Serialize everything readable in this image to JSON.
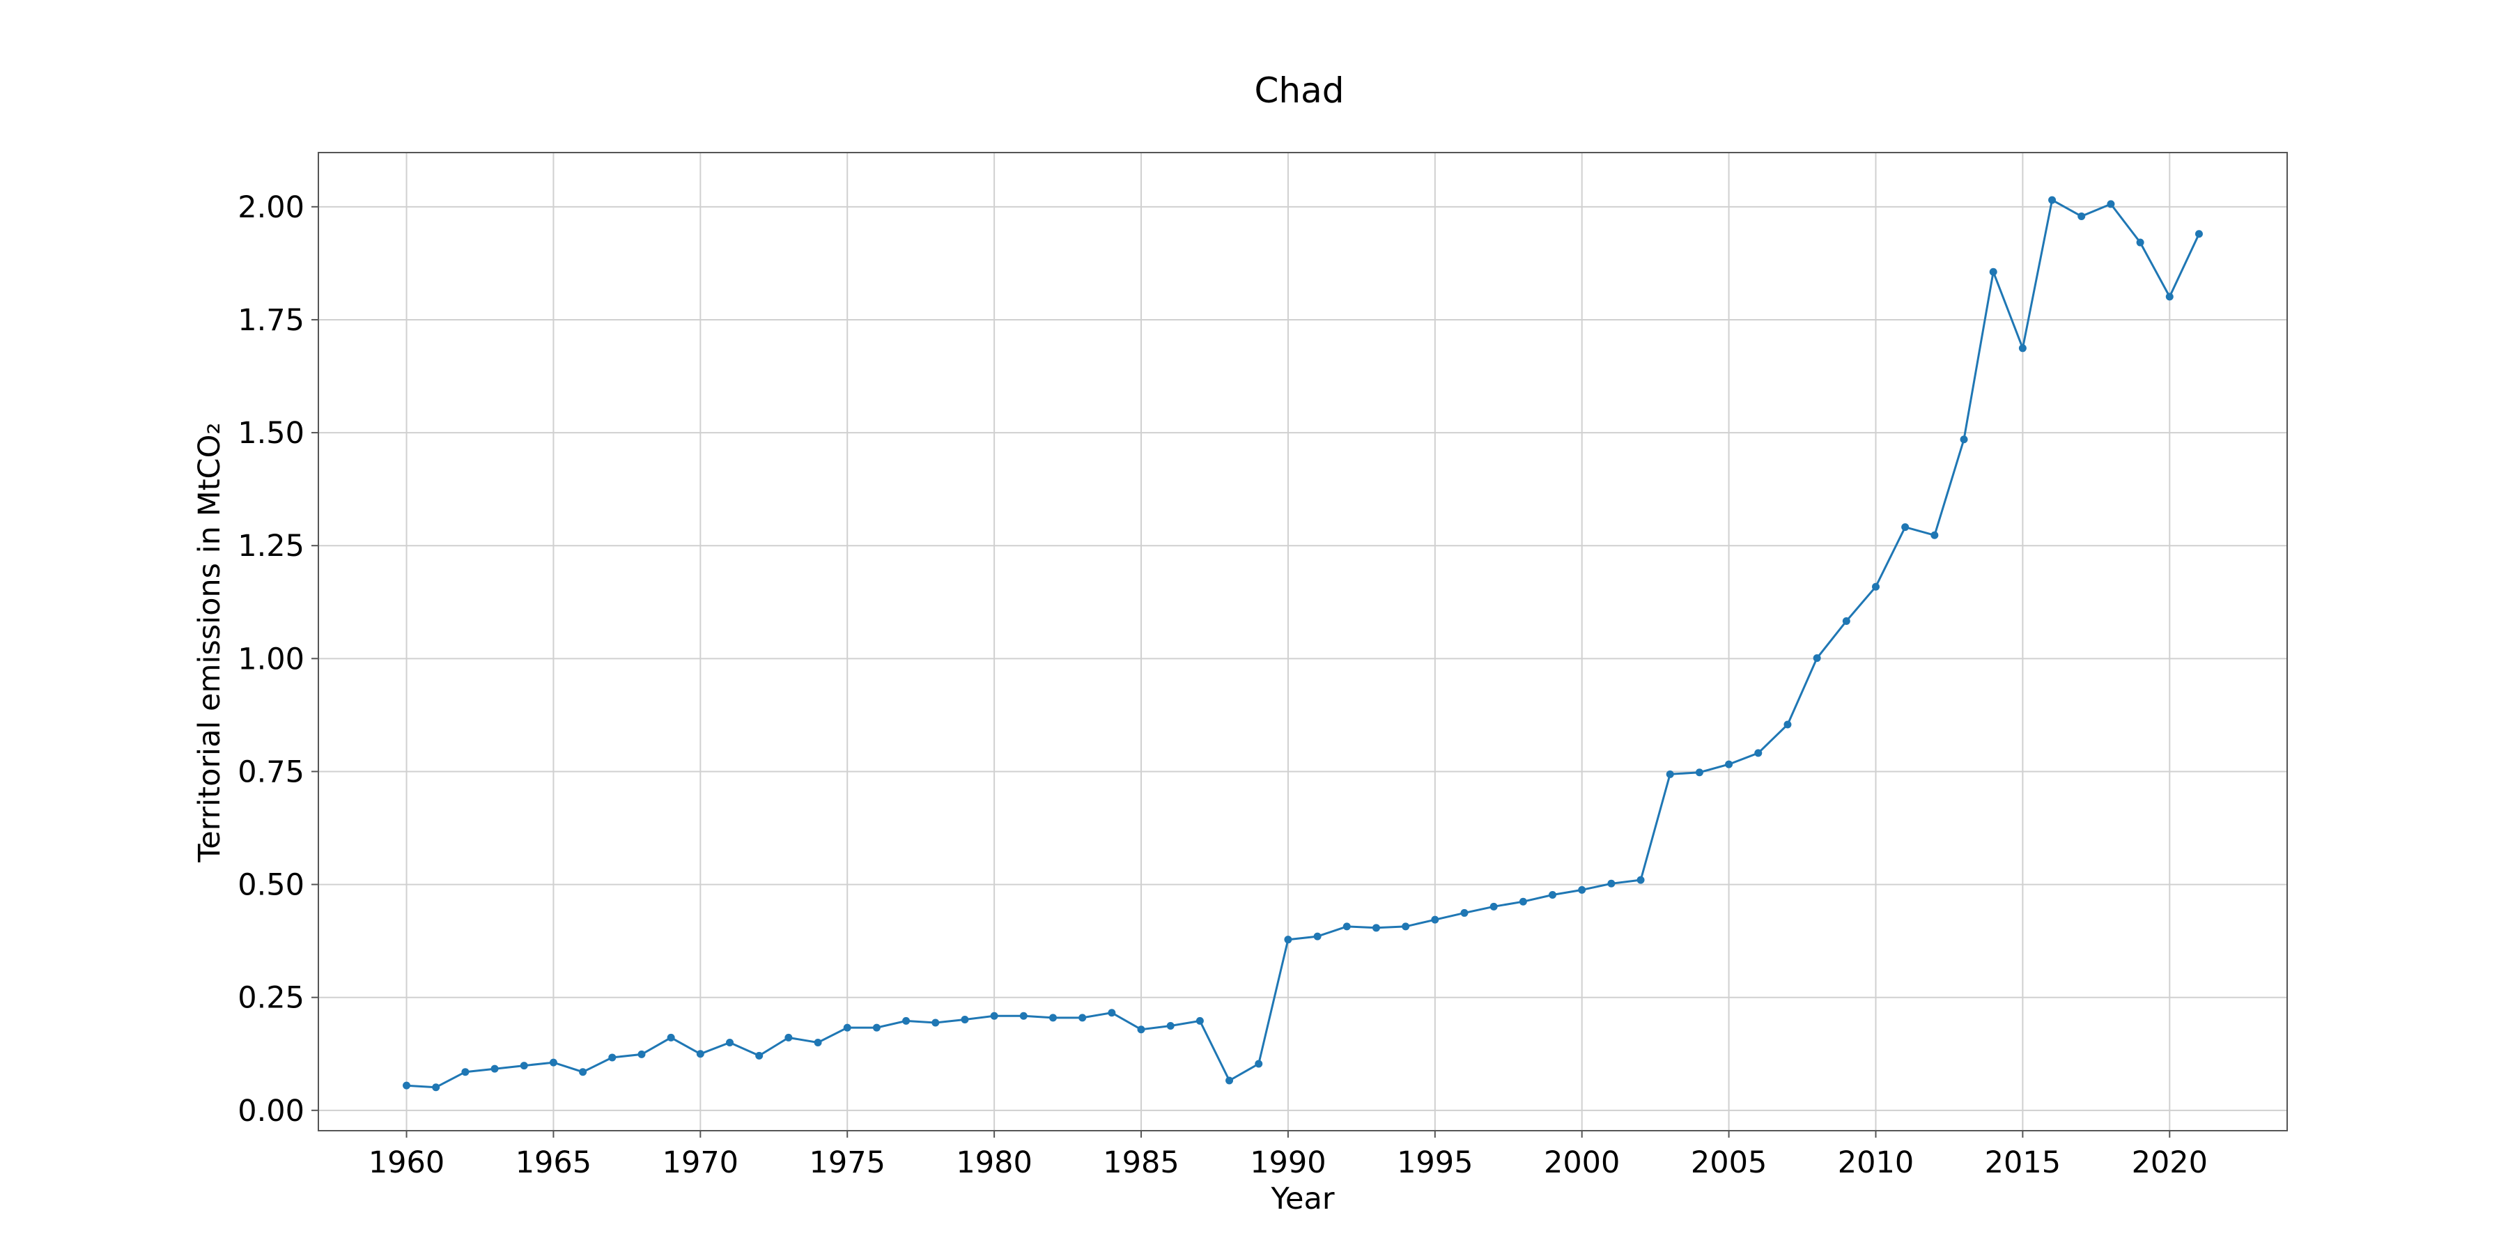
{
  "chart_data": {
    "type": "line",
    "title": "Chad",
    "xlabel": "Year",
    "ylabel": "Territorial emissions in MtCO₂",
    "xlim": [
      1957,
      2024
    ],
    "ylim": [
      -0.045,
      2.12
    ],
    "grid": true,
    "x_ticks": [
      1960,
      1965,
      1970,
      1975,
      1980,
      1985,
      1990,
      1995,
      2000,
      2005,
      2010,
      2015,
      2020
    ],
    "x_tick_labels": [
      "1960",
      "1965",
      "1970",
      "1975",
      "1980",
      "1985",
      "1990",
      "1995",
      "2000",
      "2005",
      "2010",
      "2015",
      "2020"
    ],
    "y_ticks": [
      0.0,
      0.25,
      0.5,
      0.75,
      1.0,
      1.25,
      1.5,
      1.75,
      2.0
    ],
    "y_tick_labels": [
      "0.00",
      "0.25",
      "0.50",
      "0.75",
      "1.00",
      "1.25",
      "1.50",
      "1.75",
      "2.00"
    ],
    "colors": {
      "series": "#1f77b4"
    },
    "x": [
      1960,
      1961,
      1962,
      1963,
      1964,
      1965,
      1966,
      1967,
      1968,
      1969,
      1970,
      1971,
      1972,
      1973,
      1974,
      1975,
      1976,
      1977,
      1978,
      1979,
      1980,
      1981,
      1982,
      1983,
      1984,
      1985,
      1986,
      1987,
      1988,
      1989,
      1990,
      1991,
      1992,
      1993,
      1994,
      1995,
      1996,
      1997,
      1998,
      1999,
      2000,
      2001,
      2002,
      2003,
      2004,
      2005,
      2006,
      2007,
      2008,
      2009,
      2010,
      2011,
      2012,
      2013,
      2014,
      2015,
      2016,
      2017,
      2018,
      2019,
      2020,
      2021
    ],
    "series": [
      {
        "values": [
          0.055,
          0.051,
          0.085,
          0.092,
          0.099,
          0.106,
          0.085,
          0.117,
          0.124,
          0.161,
          0.125,
          0.15,
          0.121,
          0.161,
          0.15,
          0.183,
          0.183,
          0.198,
          0.194,
          0.201,
          0.209,
          0.209,
          0.205,
          0.205,
          0.216,
          0.179,
          0.187,
          0.198,
          0.066,
          0.103,
          0.378,
          0.385,
          0.407,
          0.404,
          0.407,
          0.422,
          0.437,
          0.451,
          0.462,
          0.477,
          0.488,
          0.502,
          0.51,
          0.744,
          0.748,
          0.766,
          0.791,
          0.854,
          1.001,
          1.083,
          1.159,
          1.291,
          1.273,
          1.485,
          1.856,
          1.687,
          2.015,
          1.979,
          2.006,
          1.921,
          1.801,
          1.94
        ]
      }
    ]
  }
}
